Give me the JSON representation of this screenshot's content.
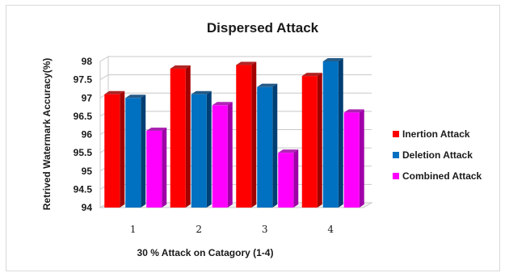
{
  "chart_data": {
    "type": "bar",
    "title": "Dispersed Attack",
    "xlabel": "30 % Attack on Catagory (1-4)",
    "ylabel": "Retrived Watermark Accuracy(%)",
    "categories": [
      "1",
      "2",
      "3",
      "4"
    ],
    "ylim": [
      94,
      98
    ],
    "yticks": [
      "94",
      "94.5",
      "95",
      "95.5",
      "96",
      "96.5",
      "97",
      "97.5",
      "98"
    ],
    "grid": true,
    "legend_position": "right",
    "series": [
      {
        "name": "Inertion Attack",
        "color": "#ff0000",
        "side_color": "#a30000",
        "values": [
          97.1,
          97.8,
          97.9,
          97.6
        ]
      },
      {
        "name": "Deletion Attack",
        "color": "#0070c0",
        "side_color": "#003f73",
        "values": [
          97.0,
          97.1,
          97.3,
          98.0
        ]
      },
      {
        "name": "Combined Attack",
        "color": "#ff00ff",
        "side_color": "#a000a8",
        "values": [
          96.1,
          96.8,
          95.5,
          96.6
        ]
      }
    ]
  }
}
